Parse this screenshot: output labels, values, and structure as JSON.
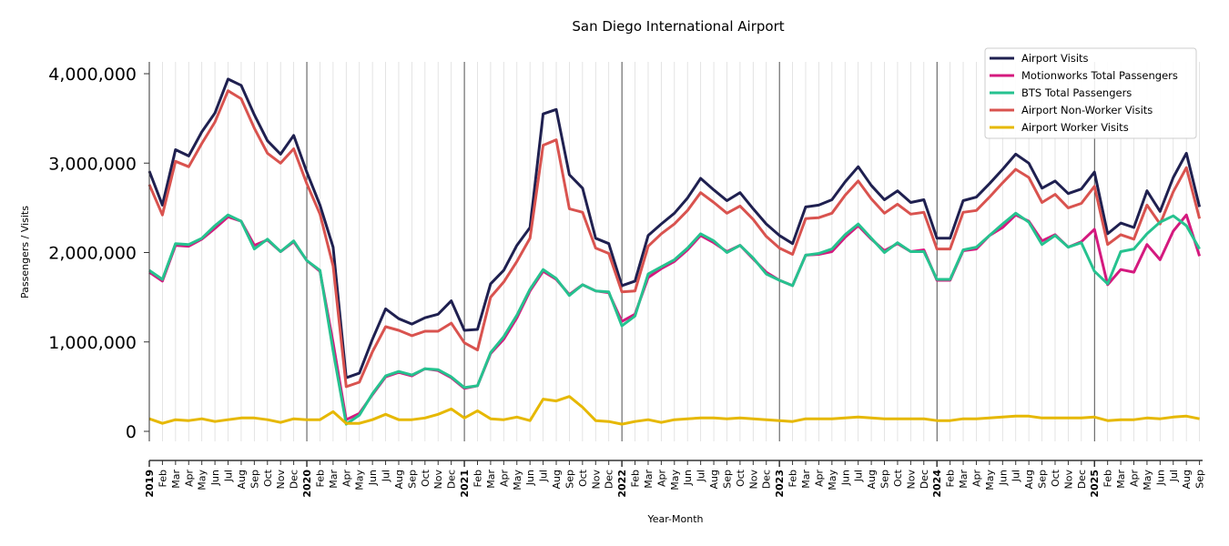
{
  "chart_data": {
    "type": "line",
    "title": "San Diego International Airport",
    "xlabel": "Year-Month",
    "ylabel": "Passengers / Visits",
    "ylim": [
      -120000,
      4150000
    ],
    "yticks": [
      0,
      1000000,
      2000000,
      3000000,
      4000000
    ],
    "ytick_labels": [
      "0",
      "1,000,000",
      "2,000,000",
      "3,000,000",
      "4,000,000"
    ],
    "grid": "vertical monthly",
    "legend_position": "top-right",
    "x_start": "2019-01",
    "x_labels": [
      "2019",
      "Feb",
      "Mar",
      "Apr",
      "May",
      "Jun",
      "Jul",
      "Aug",
      "Sep",
      "Oct",
      "Nov",
      "Dec",
      "2020",
      "Feb",
      "Mar",
      "Apr",
      "May",
      "Jun",
      "Jul",
      "Aug",
      "Sep",
      "Oct",
      "Nov",
      "Dec",
      "2021",
      "Feb",
      "Mar",
      "Apr",
      "May",
      "Jun",
      "Jul",
      "Aug",
      "Sep",
      "Oct",
      "Nov",
      "Dec",
      "2022",
      "Feb",
      "Mar",
      "Apr",
      "May",
      "Jun",
      "Jul",
      "Aug",
      "Sep",
      "Oct",
      "Nov",
      "Dec",
      "2023",
      "Feb",
      "Mar",
      "Apr",
      "May",
      "Jun",
      "Jul",
      "Aug",
      "Sep",
      "Oct",
      "Nov",
      "Dec",
      "2024",
      "Feb",
      "Mar",
      "Apr",
      "May",
      "Jun",
      "Jul",
      "Aug",
      "Sep",
      "Oct",
      "Nov",
      "Dec",
      "2025",
      "Feb",
      "Mar",
      "Apr",
      "May",
      "Jun",
      "Jul",
      "Aug",
      "Sep"
    ],
    "series": [
      {
        "name": "Airport Visits",
        "color": "#1f2050",
        "values": [
          2910000,
          2530000,
          3150000,
          3080000,
          3350000,
          3560000,
          3940000,
          3870000,
          3540000,
          3250000,
          3100000,
          3310000,
          2900000,
          2530000,
          2060000,
          600000,
          650000,
          1030000,
          1370000,
          1260000,
          1200000,
          1270000,
          1310000,
          1460000,
          1130000,
          1140000,
          1650000,
          1800000,
          2080000,
          2280000,
          3550000,
          3600000,
          2870000,
          2720000,
          2160000,
          2100000,
          1630000,
          1680000,
          2190000,
          2320000,
          2440000,
          2610000,
          2830000,
          2700000,
          2580000,
          2670000,
          2490000,
          2320000,
          2190000,
          2100000,
          2510000,
          2530000,
          2590000,
          2790000,
          2960000,
          2750000,
          2590000,
          2690000,
          2560000,
          2590000,
          2160000,
          2160000,
          2580000,
          2620000,
          2770000,
          2930000,
          3100000,
          3000000,
          2720000,
          2800000,
          2660000,
          2710000,
          2900000,
          2210000,
          2330000,
          2280000,
          2690000,
          2460000,
          2840000,
          3110000,
          2510000
        ]
      },
      {
        "name": "Motionworks Total Passengers",
        "color": "#d4197e",
        "values": [
          1780000,
          1680000,
          2080000,
          2070000,
          2150000,
          2270000,
          2400000,
          2350000,
          2080000,
          2140000,
          2010000,
          2120000,
          1910000,
          1790000,
          990000,
          130000,
          200000,
          410000,
          610000,
          660000,
          620000,
          700000,
          680000,
          600000,
          480000,
          510000,
          870000,
          1030000,
          1270000,
          1570000,
          1790000,
          1700000,
          1530000,
          1640000,
          1570000,
          1550000,
          1230000,
          1310000,
          1720000,
          1820000,
          1900000,
          2030000,
          2190000,
          2110000,
          2010000,
          2080000,
          1930000,
          1780000,
          1690000,
          1630000,
          1970000,
          1980000,
          2010000,
          2170000,
          2300000,
          2150000,
          2020000,
          2100000,
          2010000,
          2030000,
          1690000,
          1690000,
          2020000,
          2040000,
          2190000,
          2280000,
          2420000,
          2350000,
          2130000,
          2200000,
          2060000,
          2120000,
          2260000,
          1640000,
          1810000,
          1780000,
          2090000,
          1920000,
          2240000,
          2420000,
          1960000
        ]
      },
      {
        "name": "BTS Total Passengers",
        "color": "#26c28f",
        "values": [
          1800000,
          1700000,
          2100000,
          2090000,
          2160000,
          2300000,
          2420000,
          2350000,
          2040000,
          2150000,
          2010000,
          2130000,
          1910000,
          1800000,
          900000,
          80000,
          180000,
          420000,
          620000,
          670000,
          630000,
          700000,
          690000,
          610000,
          490000,
          510000,
          880000,
          1060000,
          1300000,
          1590000,
          1810000,
          1710000,
          1520000,
          1640000,
          1570000,
          1560000,
          1180000,
          1290000,
          1760000,
          1840000,
          1920000,
          2050000,
          2210000,
          2130000,
          2000000,
          2080000,
          1940000,
          1760000,
          1690000,
          1630000,
          1970000,
          1990000,
          2040000,
          2200000,
          2320000,
          2160000,
          2000000,
          2110000,
          2010000,
          2010000,
          1700000,
          1700000,
          2030000,
          2060000,
          2190000,
          2320000,
          2440000,
          2340000,
          2090000,
          2190000,
          2060000,
          2110000,
          1790000,
          1650000,
          2010000,
          2040000,
          2210000,
          2340000,
          2410000,
          2300000,
          2040000
        ]
      },
      {
        "name": "Airport Non-Worker Visits",
        "color": "#d9534f",
        "values": [
          2760000,
          2420000,
          3020000,
          2960000,
          3220000,
          3460000,
          3810000,
          3720000,
          3390000,
          3110000,
          3000000,
          3160000,
          2770000,
          2430000,
          1850000,
          500000,
          550000,
          890000,
          1170000,
          1130000,
          1070000,
          1120000,
          1120000,
          1210000,
          990000,
          910000,
          1500000,
          1670000,
          1900000,
          2160000,
          3200000,
          3260000,
          2490000,
          2450000,
          2050000,
          1990000,
          1560000,
          1570000,
          2070000,
          2210000,
          2320000,
          2470000,
          2670000,
          2560000,
          2440000,
          2520000,
          2370000,
          2180000,
          2050000,
          1980000,
          2380000,
          2390000,
          2440000,
          2640000,
          2800000,
          2600000,
          2440000,
          2540000,
          2430000,
          2450000,
          2040000,
          2040000,
          2450000,
          2470000,
          2620000,
          2780000,
          2930000,
          2840000,
          2560000,
          2650000,
          2500000,
          2550000,
          2740000,
          2090000,
          2200000,
          2150000,
          2530000,
          2320000,
          2680000,
          2950000,
          2380000
        ]
      },
      {
        "name": "Airport Worker Visits",
        "color": "#e6b800",
        "values": [
          140000,
          90000,
          130000,
          120000,
          140000,
          110000,
          130000,
          150000,
          150000,
          130000,
          100000,
          140000,
          130000,
          130000,
          220000,
          90000,
          90000,
          130000,
          190000,
          130000,
          130000,
          150000,
          190000,
          250000,
          150000,
          230000,
          140000,
          130000,
          160000,
          120000,
          360000,
          340000,
          390000,
          270000,
          120000,
          110000,
          80000,
          110000,
          130000,
          100000,
          130000,
          140000,
          150000,
          150000,
          140000,
          150000,
          140000,
          130000,
          120000,
          110000,
          140000,
          140000,
          140000,
          150000,
          160000,
          150000,
          140000,
          140000,
          140000,
          140000,
          120000,
          120000,
          140000,
          140000,
          150000,
          160000,
          170000,
          170000,
          150000,
          150000,
          150000,
          150000,
          160000,
          120000,
          130000,
          130000,
          150000,
          140000,
          160000,
          170000,
          140000
        ]
      }
    ],
    "year_separators": [
      "2020",
      "2021",
      "2022",
      "2023",
      "2024",
      "2025"
    ]
  }
}
